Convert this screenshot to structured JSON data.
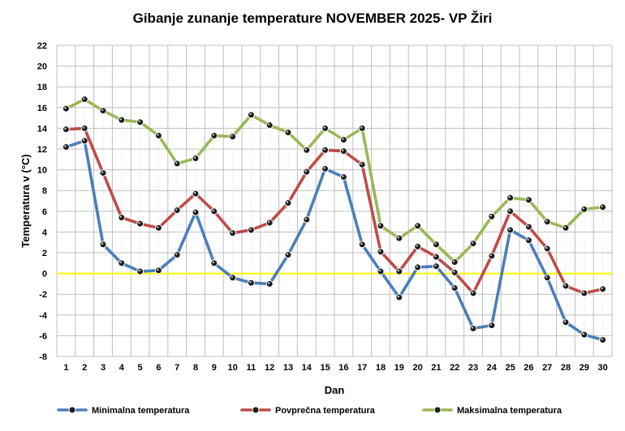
{
  "chart_data": {
    "type": "line",
    "title": "Gibanje zunanje temperature NOVEMBER 2025- VP Žiri",
    "xlabel": "Dan",
    "ylabel": "Temperatura v (°C)",
    "categories": [
      "1",
      "2",
      "3",
      "4",
      "5",
      "6",
      "7",
      "8",
      "9",
      "10",
      "11",
      "12",
      "13",
      "14",
      "15",
      "16",
      "17",
      "18",
      "19",
      "20",
      "21",
      "22",
      "23",
      "24",
      "25",
      "26",
      "27",
      "28",
      "29",
      "30"
    ],
    "ylim": [
      -8,
      22
    ],
    "yticks": [
      -8,
      -6,
      -4,
      -2,
      0,
      2,
      4,
      6,
      8,
      10,
      12,
      14,
      16,
      18,
      20,
      22
    ],
    "grid": true,
    "zero_line_color": "#ffff00",
    "legend_position": "bottom",
    "series": [
      {
        "name": "Minimalna temperatura",
        "color": "#4a7ebb",
        "values": [
          12.2,
          12.8,
          2.8,
          1.0,
          0.2,
          0.3,
          1.8,
          5.9,
          1.0,
          -0.4,
          -0.9,
          -1.0,
          1.8,
          5.2,
          10.1,
          9.3,
          2.8,
          0.2,
          -2.3,
          0.6,
          0.7,
          -1.4,
          -5.3,
          -5.0,
          4.2,
          3.2,
          -0.4,
          -4.7,
          -5.9,
          -6.4
        ]
      },
      {
        "name": "Povprečna temperatura",
        "color": "#be4b48",
        "values": [
          13.9,
          14.0,
          9.7,
          5.4,
          4.8,
          4.4,
          6.1,
          7.7,
          6.0,
          3.9,
          4.2,
          4.9,
          6.8,
          9.8,
          11.9,
          11.8,
          10.5,
          2.1,
          0.2,
          2.6,
          1.6,
          0.1,
          -1.9,
          1.7,
          6.0,
          4.5,
          2.4,
          -1.2,
          -1.9,
          -1.5
        ]
      },
      {
        "name": "Maksimalna temperatura",
        "color": "#98b954",
        "values": [
          15.9,
          16.8,
          15.7,
          14.8,
          14.6,
          13.3,
          10.6,
          11.1,
          13.3,
          13.2,
          15.3,
          14.3,
          13.6,
          11.9,
          14.0,
          12.9,
          14.0,
          4.6,
          3.4,
          4.6,
          2.8,
          1.1,
          2.9,
          5.5,
          7.3,
          7.1,
          5.0,
          4.4,
          6.2,
          6.4
        ]
      }
    ]
  }
}
